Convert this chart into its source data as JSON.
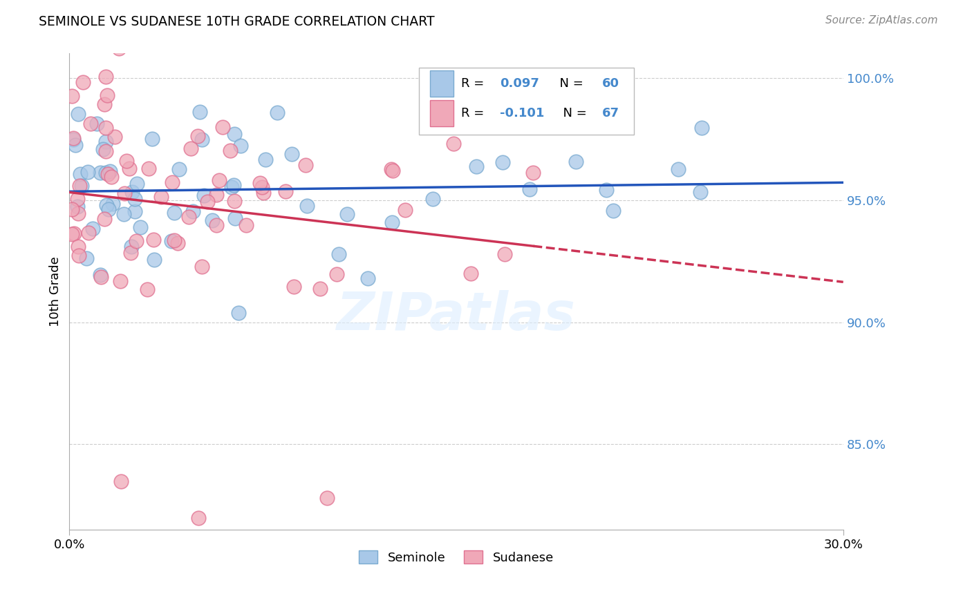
{
  "title": "SEMINOLE VS SUDANESE 10TH GRADE CORRELATION CHART",
  "source": "Source: ZipAtlas.com",
  "ylabel": "10th Grade",
  "xlim": [
    0.0,
    0.3
  ],
  "ylim": [
    0.815,
    1.01
  ],
  "yticks": [
    0.85,
    0.9,
    0.95,
    1.0
  ],
  "ytick_labels": [
    "85.0%",
    "90.0%",
    "95.0%",
    "100.0%"
  ],
  "seminole_R": 0.097,
  "seminole_N": 60,
  "sudanese_R": -0.101,
  "sudanese_N": 67,
  "seminole_color": "#a8c8e8",
  "sudanese_color": "#f0a8b8",
  "seminole_edge": "#7aaad0",
  "sudanese_edge": "#e07090",
  "seminole_line_color": "#2255bb",
  "sudanese_line_color": "#cc3355",
  "text_blue": "#4488cc",
  "watermark": "ZIPatlas",
  "watermark_color": "#ddeeff"
}
